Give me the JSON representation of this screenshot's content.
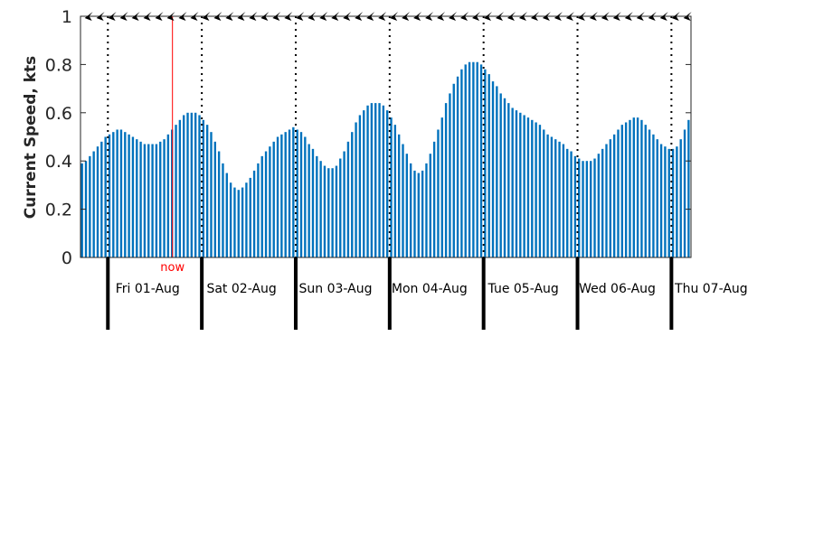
{
  "chart_data": {
    "type": "bar",
    "ylabel": "Current Speed, kts",
    "xlabel": "",
    "title": "",
    "ylim": [
      0,
      1
    ],
    "yticks": [
      "0",
      "0.2",
      "0.4",
      "0.6",
      "0.8",
      "1"
    ],
    "x_unit": "hours",
    "day_labels": [
      "Fri 01-Aug",
      "Sat 02-Aug",
      "Sun 03-Aug",
      "Mon 04-Aug",
      "Tue 05-Aug",
      "Wed 06-Aug",
      "Thu 07-Aug"
    ],
    "now_label": "now",
    "now_offset_hours": 23.5,
    "first_midnight_hours": 7,
    "hours_per_day": 24,
    "hours_per_arrow": 3,
    "bar_color": "#0072bd",
    "now_color": "#ff0000",
    "values": [
      0.39,
      0.4,
      0.42,
      0.44,
      0.46,
      0.48,
      0.5,
      0.51,
      0.52,
      0.53,
      0.53,
      0.52,
      0.51,
      0.5,
      0.49,
      0.48,
      0.47,
      0.47,
      0.47,
      0.47,
      0.48,
      0.49,
      0.51,
      0.53,
      0.55,
      0.57,
      0.59,
      0.6,
      0.6,
      0.6,
      0.59,
      0.57,
      0.55,
      0.52,
      0.48,
      0.44,
      0.39,
      0.35,
      0.31,
      0.29,
      0.28,
      0.29,
      0.31,
      0.33,
      0.36,
      0.39,
      0.42,
      0.44,
      0.46,
      0.48,
      0.5,
      0.51,
      0.52,
      0.53,
      0.54,
      0.53,
      0.52,
      0.5,
      0.47,
      0.45,
      0.42,
      0.4,
      0.38,
      0.37,
      0.37,
      0.38,
      0.41,
      0.44,
      0.48,
      0.52,
      0.56,
      0.59,
      0.61,
      0.63,
      0.64,
      0.64,
      0.64,
      0.63,
      0.61,
      0.58,
      0.55,
      0.51,
      0.47,
      0.43,
      0.39,
      0.36,
      0.35,
      0.36,
      0.39,
      0.43,
      0.48,
      0.53,
      0.58,
      0.64,
      0.68,
      0.72,
      0.75,
      0.78,
      0.8,
      0.81,
      0.81,
      0.81,
      0.8,
      0.78,
      0.76,
      0.73,
      0.71,
      0.68,
      0.66,
      0.64,
      0.62,
      0.61,
      0.6,
      0.59,
      0.58,
      0.57,
      0.56,
      0.55,
      0.53,
      0.51,
      0.5,
      0.49,
      0.48,
      0.47,
      0.45,
      0.44,
      0.42,
      0.41,
      0.4,
      0.4,
      0.4,
      0.41,
      0.43,
      0.45,
      0.47,
      0.49,
      0.51,
      0.53,
      0.55,
      0.56,
      0.57,
      0.58,
      0.58,
      0.57,
      0.55,
      0.53,
      0.51,
      0.49,
      0.47,
      0.46,
      0.45,
      0.45,
      0.46,
      0.49,
      0.53,
      0.57
    ]
  }
}
